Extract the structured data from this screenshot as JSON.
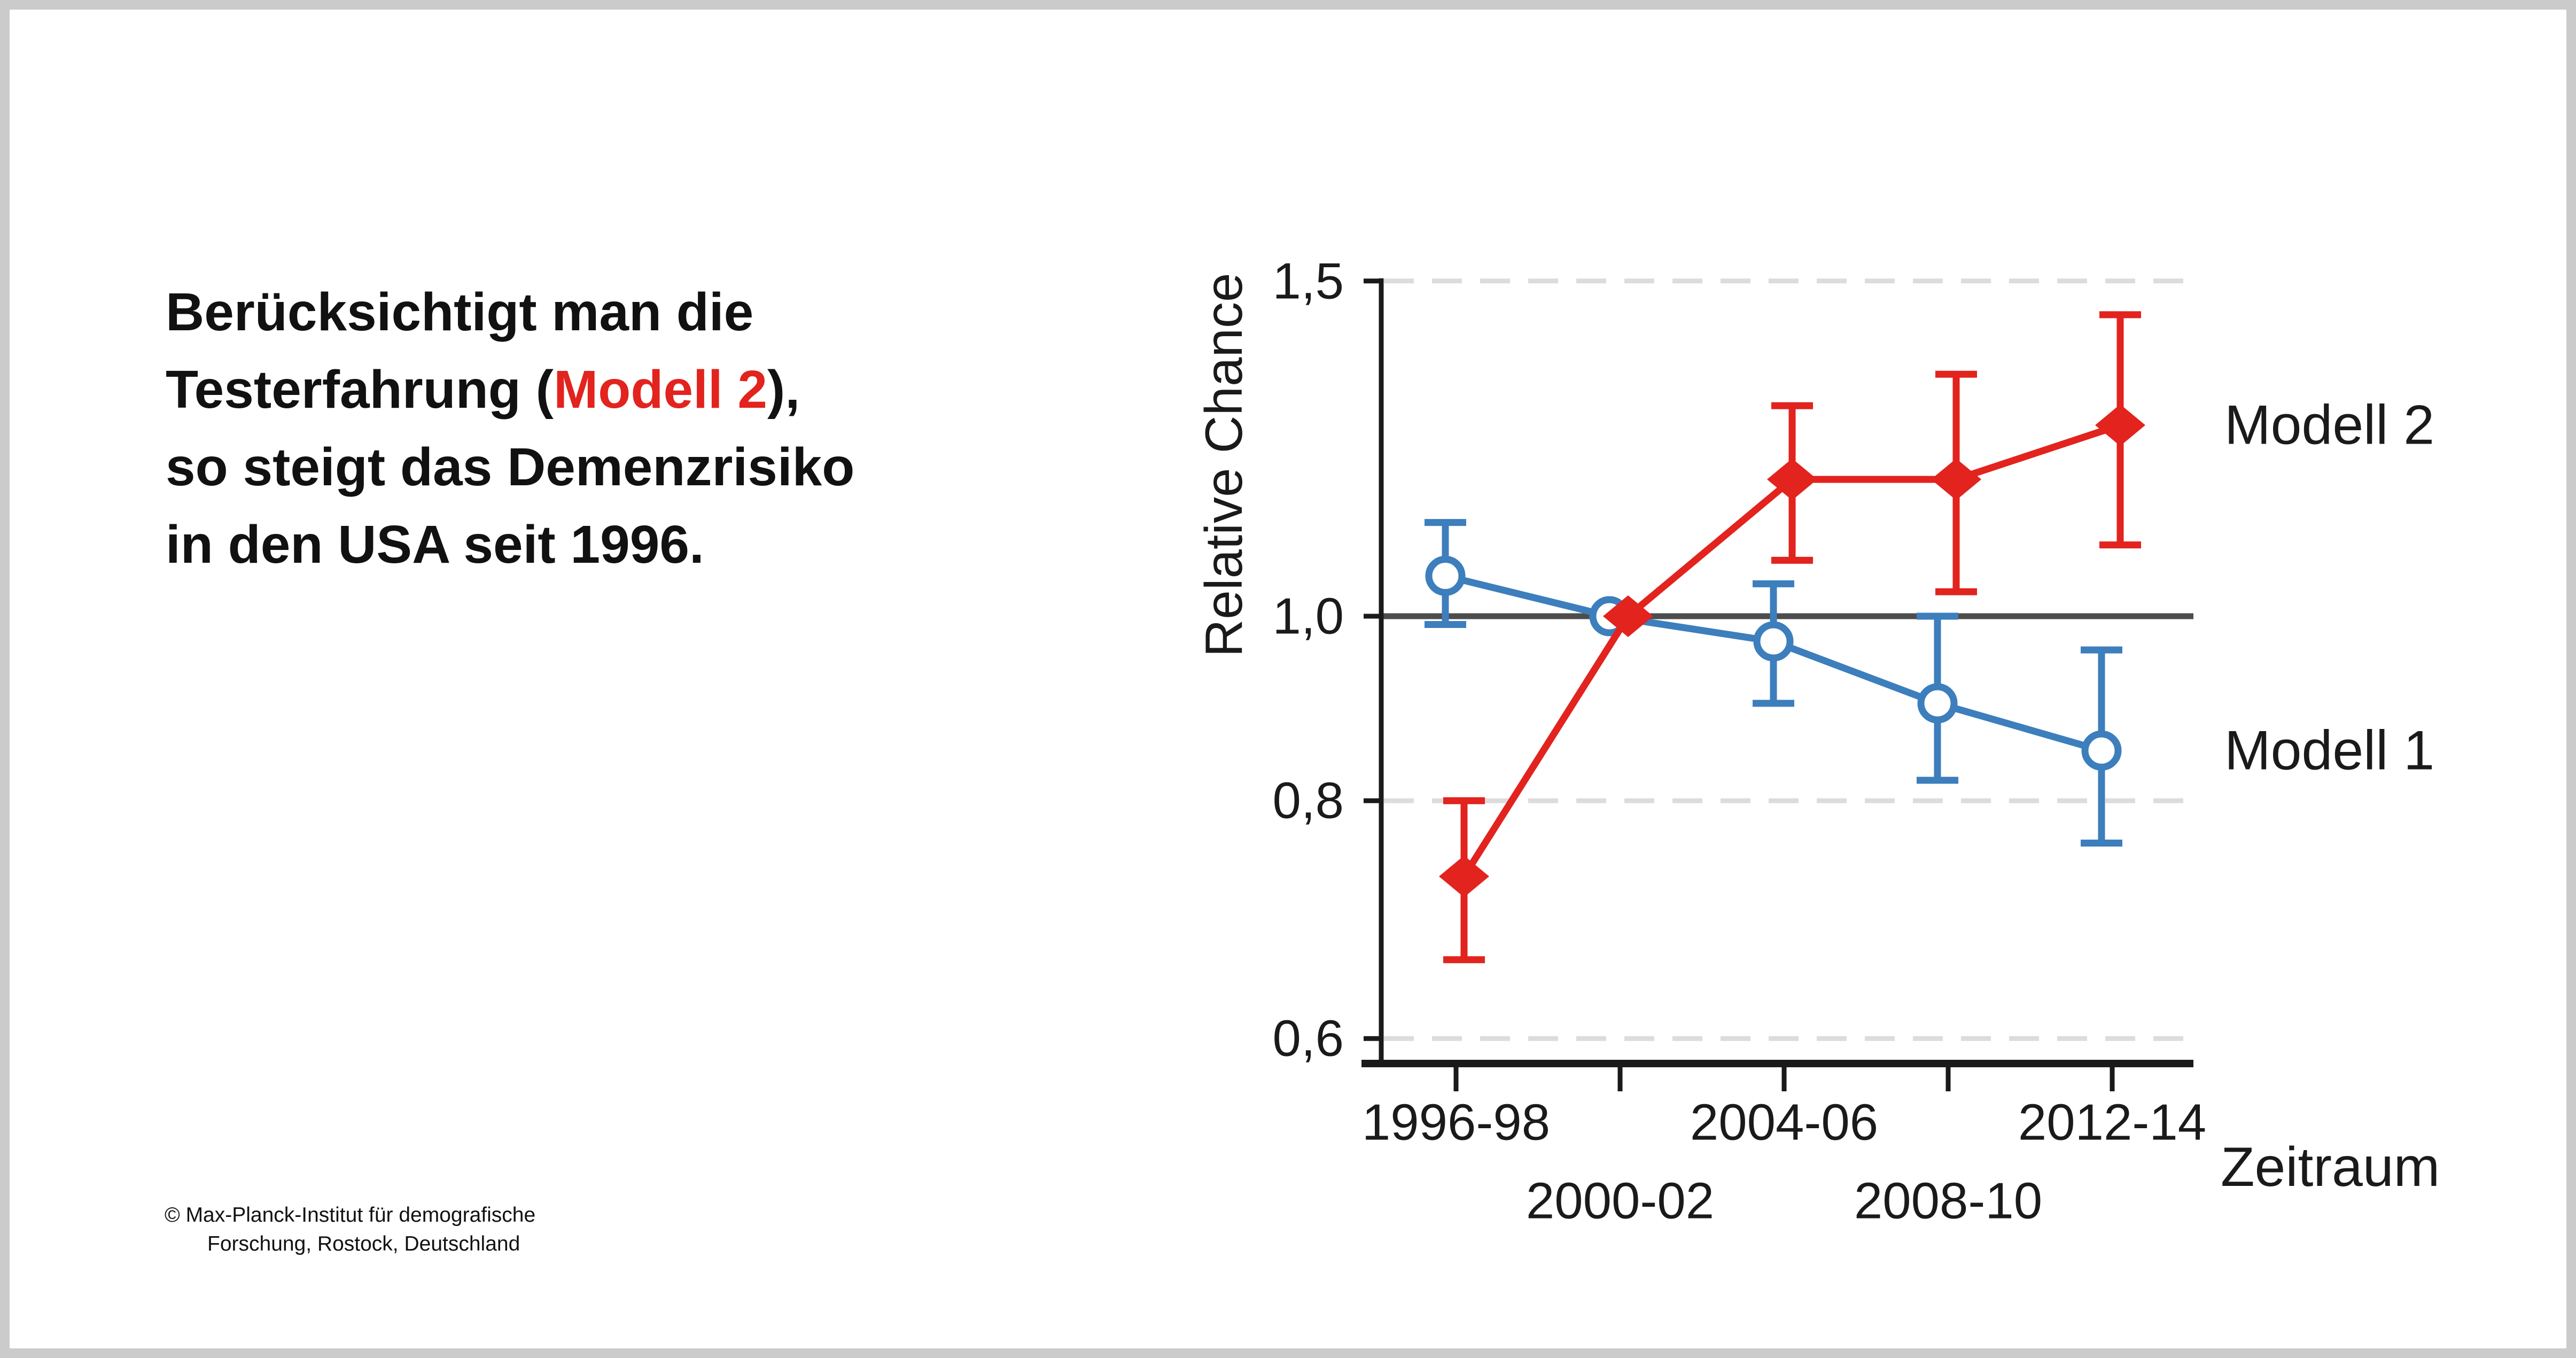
{
  "panel": {
    "background_color": "#ffffff",
    "frame_color": "#cbcbcb"
  },
  "headline": {
    "line1": "Berücksichtigt man die",
    "line2_pre": "Testerfahrung (",
    "line2_highlight": "Modell 2",
    "line2_post": "),",
    "line3": "so steigt das Demenzrisiko",
    "line4": "in den USA seit 1996.",
    "text_color": "#111111",
    "highlight_color": "#e2231e"
  },
  "copyright": {
    "line1": "© Max-Planck-Institut für demografische",
    "line2": "Forschung, Rostock, Deutschland"
  },
  "chart_data": {
    "type": "line",
    "title": "",
    "ylabel": "Relative Chance",
    "xlabel": "Zeitraum",
    "yscale": "log",
    "ylim": [
      0.55,
      1.55
    ],
    "grid": "dashed horizontal at 1.5, 0.8, 0.6; solid reference at 1.0",
    "legend_position": "right, next to last data points",
    "categories": [
      "1996-98",
      "2000-02",
      "2004-06",
      "2008-10",
      "2012-14"
    ],
    "yticks": [
      {
        "label": "1,5",
        "value": 1.5
      },
      {
        "label": "1,0",
        "value": 1.0
      },
      {
        "label": "0,8",
        "value": 0.8
      },
      {
        "label": "0,6",
        "value": 0.6
      }
    ],
    "gridline_values": [
      1.5,
      0.8,
      0.6
    ],
    "reference_line_value": 1.0,
    "series": [
      {
        "name": "Modell 1",
        "color": "#3d7ebc",
        "marker": "open-circle",
        "values": [
          1.05,
          1.0,
          0.97,
          0.9,
          0.85
        ],
        "ci_low": [
          0.99,
          null,
          0.9,
          0.82,
          0.76
        ],
        "ci_high": [
          1.12,
          null,
          1.04,
          1.0,
          0.96
        ]
      },
      {
        "name": "Modell 2",
        "color": "#e2231e",
        "marker": "diamond",
        "values": [
          0.73,
          1.0,
          1.18,
          1.18,
          1.26
        ],
        "ci_low": [
          0.66,
          null,
          1.07,
          1.03,
          1.09
        ],
        "ci_high": [
          0.8,
          null,
          1.29,
          1.34,
          1.44
        ]
      }
    ],
    "legend": [
      {
        "label": "Modell 2",
        "color": "#e2231e"
      },
      {
        "label": "Modell 1",
        "color": "#3d7ebc"
      }
    ],
    "colors": {
      "gridline": "#dcdcdc",
      "reference_line": "#4d4d4d",
      "axis": "#1a1a1a"
    }
  }
}
